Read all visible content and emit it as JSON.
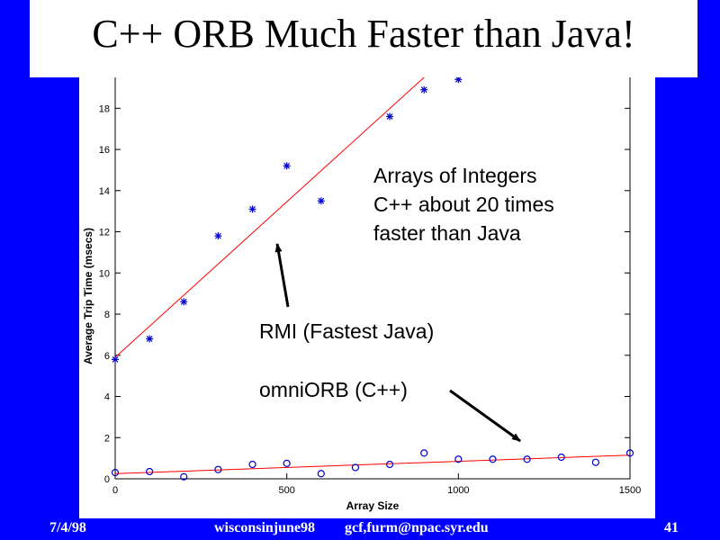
{
  "slide": {
    "title": "C++ ORB Much Faster than Java!",
    "footer_date": "7/4/98",
    "footer_event": "wisconsinjune98",
    "footer_contact": "gcf,furm@npac.syr.edu",
    "slide_number": "41"
  },
  "colors": {
    "background": "#0000ff",
    "java_marker": "#0000cc",
    "cpp_marker": "#0000cc",
    "fit_line": "#ff0000"
  },
  "chart_data": {
    "type": "scatter",
    "xlabel": "Array Size",
    "ylabel": "Average Trip Time (msecs)",
    "xlim": [
      0,
      1500
    ],
    "ylim": [
      0,
      19.5
    ],
    "x_ticks": [
      0,
      500,
      1000,
      1500
    ],
    "x_tick_labels": [
      "0",
      "500",
      "1000",
      "1500"
    ],
    "y_ticks": [
      0,
      2,
      4,
      6,
      8,
      10,
      12,
      14,
      16,
      18
    ],
    "y_tick_labels": [
      "0",
      "2",
      "4",
      "6",
      "8",
      "10",
      "12",
      "14",
      "16",
      "18"
    ],
    "series": [
      {
        "name": "RMI (Fastest Java)",
        "marker": "asterisk",
        "points": [
          [
            0,
            5.8
          ],
          [
            100,
            6.8
          ],
          [
            200,
            8.6
          ],
          [
            300,
            11.8
          ],
          [
            400,
            13.1
          ],
          [
            500,
            15.2
          ],
          [
            600,
            13.5
          ],
          [
            800,
            17.6
          ],
          [
            900,
            18.9
          ],
          [
            1000,
            19.4
          ]
        ],
        "fit": [
          [
            0,
            5.9
          ],
          [
            900,
            19.5
          ]
        ]
      },
      {
        "name": "omniORB (C++)",
        "marker": "circle",
        "points": [
          [
            0,
            0.3
          ],
          [
            100,
            0.35
          ],
          [
            200,
            0.1
          ],
          [
            300,
            0.45
          ],
          [
            400,
            0.7
          ],
          [
            500,
            0.75
          ],
          [
            600,
            0.25
          ],
          [
            700,
            0.55
          ],
          [
            800,
            0.7
          ],
          [
            900,
            1.25
          ],
          [
            1000,
            0.95
          ],
          [
            1100,
            0.95
          ],
          [
            1200,
            0.95
          ],
          [
            1300,
            1.05
          ],
          [
            1400,
            0.8
          ],
          [
            1500,
            1.25
          ]
        ],
        "fit": [
          [
            0,
            0.25
          ],
          [
            1500,
            1.15
          ]
        ]
      }
    ],
    "annotations": {
      "summary_lines": [
        "Arrays of Integers",
        "C++ about 20 times",
        "faster than Java"
      ],
      "java_label": "RMI (Fastest Java)",
      "cpp_label": "omniORB (C++)"
    }
  }
}
